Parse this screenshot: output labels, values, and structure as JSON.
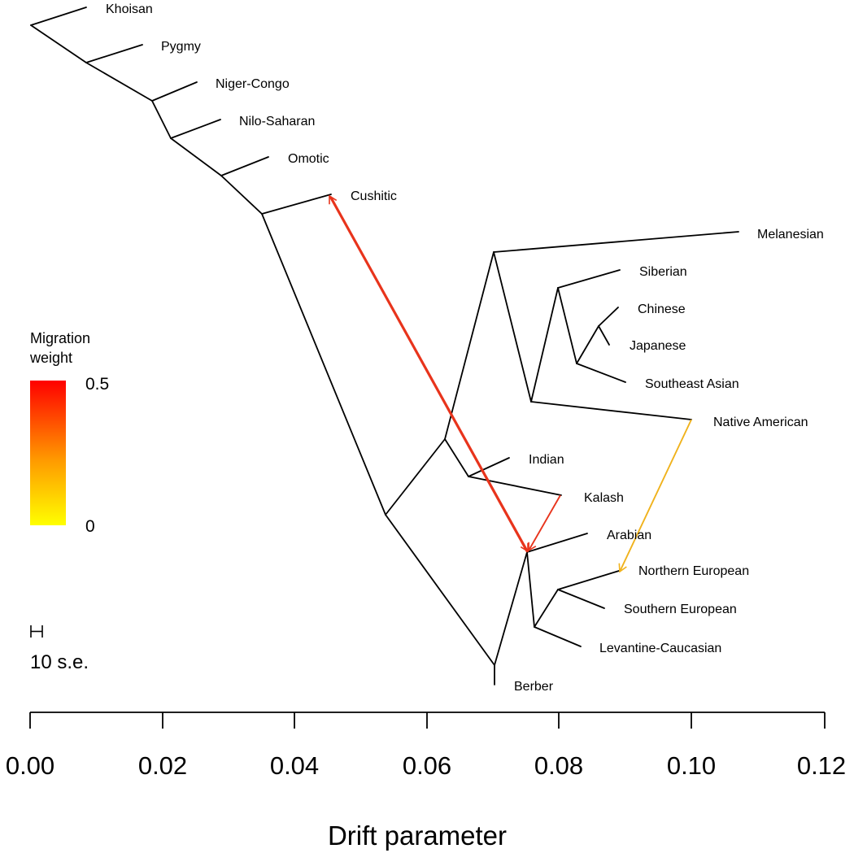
{
  "legend": {
    "title_line1": "Migration",
    "title_line2": "weight",
    "max_label": "0.5",
    "min_label": "0",
    "color_high": "#ff0000",
    "color_low": "#ffff00"
  },
  "scale_bar": {
    "label": "10 s.e."
  },
  "axis": {
    "title": "Drift parameter",
    "ticks": [
      "0.00",
      "0.02",
      "0.04",
      "0.06",
      "0.08",
      "0.10",
      "0.12"
    ]
  },
  "populations": [
    "Khoisan",
    "Pygmy",
    "Niger-Congo",
    "Nilo-Saharan",
    "Omotic",
    "Cushitic",
    "Melanesian",
    "Siberian",
    "Chinese",
    "Japanese",
    "Southeast Asian",
    "Native American",
    "Indian",
    "Kalash",
    "Arabian",
    "Northern European",
    "Southern European",
    "Levantine-Caucasian",
    "Berber"
  ],
  "migrations": [
    {
      "from": "ancestor of Arabian/European clade",
      "to": "Cushitic",
      "weight_color": "#e8341c"
    },
    {
      "from": "Kalash branch",
      "to": "ancestor of Arabian/European clade",
      "weight_color": "#e8341c"
    },
    {
      "from": "Native American",
      "to": "Northern European",
      "weight_color": "#f0b21c"
    }
  ],
  "colors": {
    "tree": "#000000",
    "migration_high": "#e8341c",
    "migration_low": "#f0b21c"
  }
}
